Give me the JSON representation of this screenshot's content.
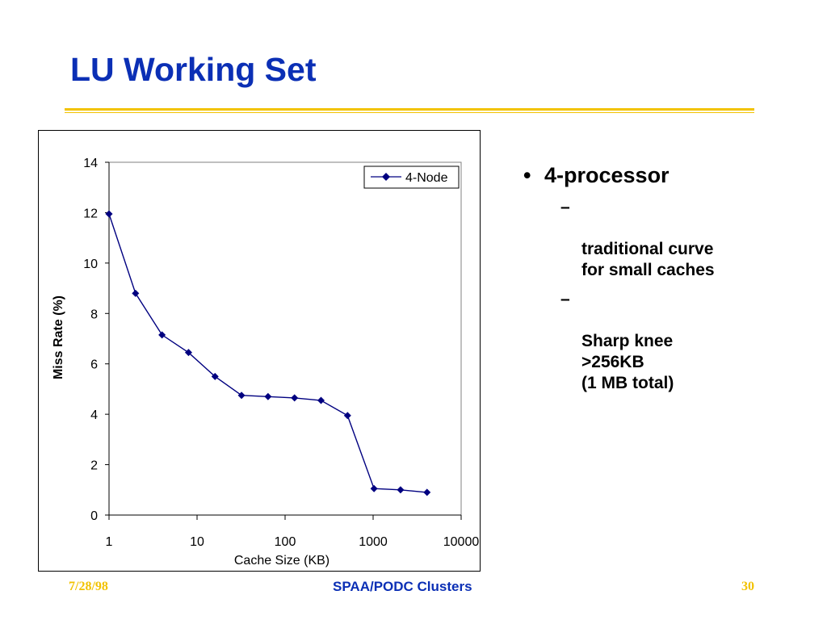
{
  "slide": {
    "title": "LU Working Set",
    "accent_color": "#f2c200",
    "title_color": "#0b2fb5"
  },
  "bullets": {
    "main": "4-processor",
    "sub": [
      "traditional curve\nfor small caches",
      "Sharp knee\n>256KB\n   (1 MB total)"
    ]
  },
  "footer": {
    "date": "7/28/98",
    "center": "SPAA/PODC Clusters",
    "page": "30"
  },
  "chart_data": {
    "type": "line",
    "xlabel": "Cache Size (KB)",
    "ylabel": "Miss Rate (%)",
    "x_scale": "log",
    "xlim": [
      1,
      10000
    ],
    "ylim": [
      0,
      14
    ],
    "x_ticks": [
      "1",
      "10",
      "100",
      "1000",
      "10000"
    ],
    "y_ticks": [
      "0",
      "2",
      "4",
      "6",
      "8",
      "10",
      "12",
      "14"
    ],
    "legend": "top-right",
    "grid": false,
    "series": [
      {
        "name": "4-Node",
        "color": "#000080",
        "marker": "diamond",
        "x": [
          1,
          2,
          4,
          8,
          16,
          32,
          64,
          128,
          256,
          512,
          1024,
          2048,
          4096
        ],
        "values": [
          11.95,
          8.8,
          7.15,
          6.45,
          5.5,
          4.75,
          4.7,
          4.65,
          4.55,
          3.95,
          1.05,
          1.0,
          0.9
        ]
      }
    ]
  }
}
